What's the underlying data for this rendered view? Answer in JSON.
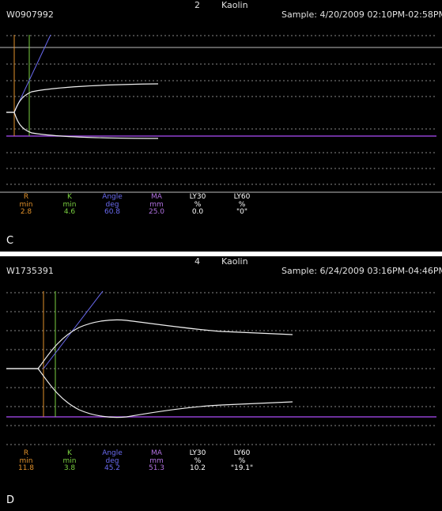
{
  "colors": {
    "r": "#e0902a",
    "k": "#7ad040",
    "angle": "#6a6af0",
    "ma": "#b070e0",
    "ly": "#ffffff",
    "baseline": "#9040d0"
  },
  "panels": [
    {
      "panel_label": "C",
      "channel": "2",
      "reagent": "Kaolin",
      "id": "W0907992",
      "sample": "Sample: 4/20/2009 02:10PM-02:58PM",
      "params": {
        "r": {
          "name": "R",
          "unit": "min",
          "value": "2.8"
        },
        "k": {
          "name": "K",
          "unit": "min",
          "value": "4.6"
        },
        "angle": {
          "name": "Angle",
          "unit": "deg",
          "value": "60.8"
        },
        "ma": {
          "name": "MA",
          "unit": "mm",
          "value": "25.0"
        },
        "ly30": {
          "name": "LY30",
          "unit": "%",
          "value": "0.0"
        },
        "ly60": {
          "name": "LY60",
          "unit": "%",
          "value": "\"0\""
        }
      }
    },
    {
      "panel_label": "D",
      "channel": "4",
      "reagent": "Kaolin",
      "id": "W1735391",
      "sample": "Sample: 6/24/2009 03:16PM-04:46PM",
      "params": {
        "r": {
          "name": "R",
          "unit": "min",
          "value": "11.8"
        },
        "k": {
          "name": "K",
          "unit": "min",
          "value": "3.8"
        },
        "angle": {
          "name": "Angle",
          "unit": "deg",
          "value": "45.2"
        },
        "ma": {
          "name": "MA",
          "unit": "mm",
          "value": "51.3"
        },
        "ly30": {
          "name": "LY30",
          "unit": "%",
          "value": "10.2"
        },
        "ly60": {
          "name": "LY60",
          "unit": "%",
          "value": "\"19.1\""
        }
      }
    }
  ]
}
